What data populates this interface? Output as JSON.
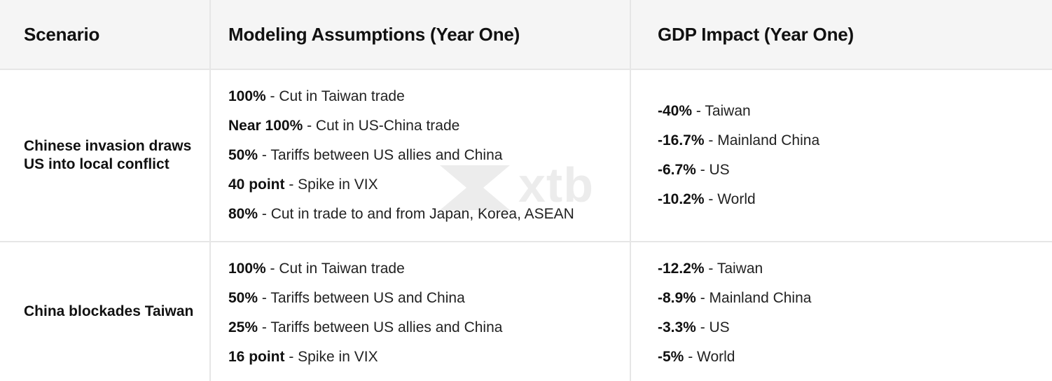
{
  "header": {
    "col1": "Scenario",
    "col2": "Modeling Assumptions (Year One)",
    "col3": "GDP Impact (Year One)"
  },
  "rows": [
    {
      "scenario": "Chinese invasion draws US into local conflict",
      "assumptions": [
        {
          "value": "100%",
          "text": " - Cut in Taiwan trade"
        },
        {
          "value": "Near 100%",
          "text": " - Cut in US-China trade"
        },
        {
          "value": "50%",
          "text": " - Tariffs between US allies and China"
        },
        {
          "value": "40 point",
          "text": " - Spike in VIX"
        },
        {
          "value": "80%",
          "text": " - Cut in trade to and from Japan, Korea, ASEAN"
        }
      ],
      "impacts": [
        {
          "value": "-40%",
          "text": " - Taiwan"
        },
        {
          "value": "-16.7%",
          "text": " - Mainland China"
        },
        {
          "value": "-6.7%",
          "text": " - US"
        },
        {
          "value": "-10.2%",
          "text": " - World"
        }
      ]
    },
    {
      "scenario": "China blockades Taiwan",
      "assumptions": [
        {
          "value": "100%",
          "text": " - Cut in Taiwan trade"
        },
        {
          "value": "50%",
          "text": " - Tariffs between US and China"
        },
        {
          "value": "25%",
          "text": " - Tariffs between US allies and China"
        },
        {
          "value": "16 point",
          "text": " - Spike in VIX"
        }
      ],
      "impacts": [
        {
          "value": "-12.2%",
          "text": " - Taiwan"
        },
        {
          "value": "-8.9%",
          "text": " - Mainland China"
        },
        {
          "value": "-3.3%",
          "text": " - US"
        },
        {
          "value": "-5%",
          "text": " - World"
        }
      ]
    }
  ],
  "watermark": {
    "text": "xtb",
    "icon": "xtb-logo-icon"
  }
}
